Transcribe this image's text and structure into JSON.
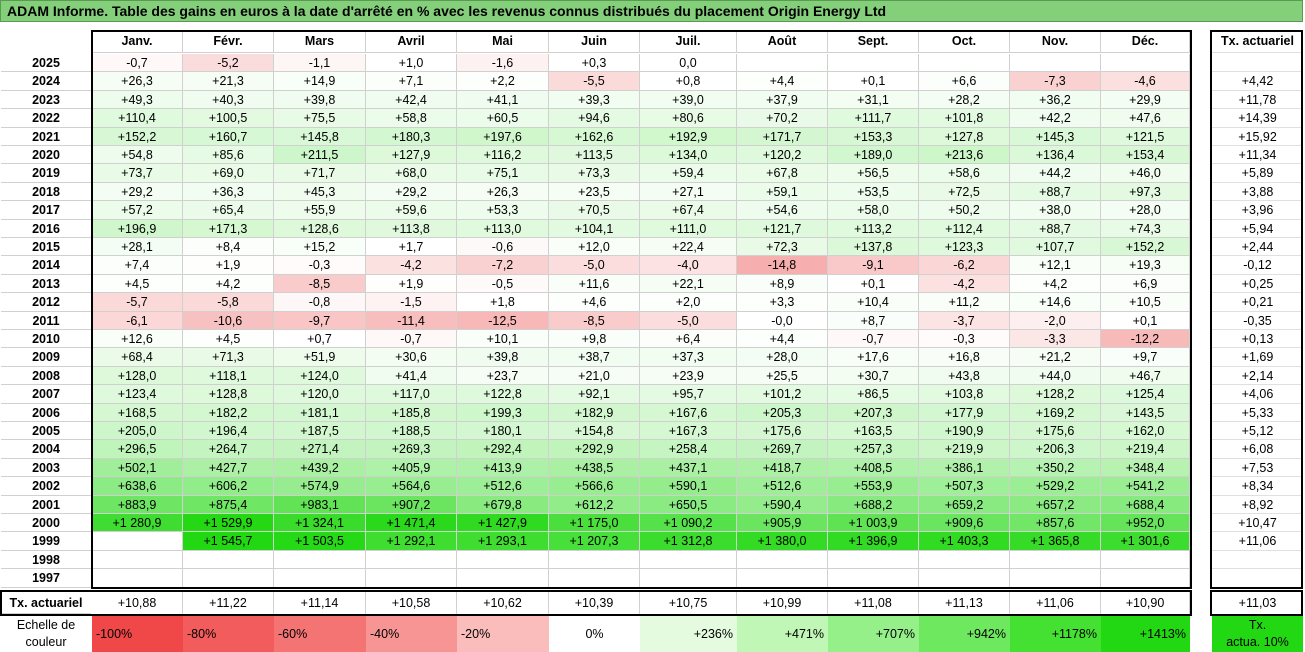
{
  "title": "ADAM Informe. Table des gains en euros à la date d'arrêté en % avec les revenus connus distribués du placement Origin Energy Ltd",
  "months": [
    "Janv.",
    "Févr.",
    "Mars",
    "Avril",
    "Mai",
    "Juin",
    "Juil.",
    "Août",
    "Sept.",
    "Oct.",
    "Nov.",
    "Déc."
  ],
  "actuarial_header": "Tx. actuariel",
  "rows": [
    {
      "year": "2025",
      "values": [
        "-0,7",
        "-5,2",
        "-1,1",
        "+1,0",
        "-1,6",
        "+0,3",
        "0,0",
        "",
        "",
        "",
        "",
        ""
      ],
      "tx": ""
    },
    {
      "year": "2024",
      "values": [
        "+26,3",
        "+21,3",
        "+14,9",
        "+7,1",
        "+2,2",
        "-5,5",
        "+0,8",
        "+4,4",
        "+0,1",
        "+6,6",
        "-7,3",
        "-4,6"
      ],
      "tx": "+4,42"
    },
    {
      "year": "2023",
      "values": [
        "+49,3",
        "+40,3",
        "+39,8",
        "+42,4",
        "+41,1",
        "+39,3",
        "+39,0",
        "+37,9",
        "+31,1",
        "+28,2",
        "+36,2",
        "+29,9"
      ],
      "tx": "+11,78"
    },
    {
      "year": "2022",
      "values": [
        "+110,4",
        "+100,5",
        "+75,5",
        "+58,8",
        "+60,5",
        "+94,6",
        "+80,6",
        "+70,2",
        "+111,7",
        "+101,8",
        "+42,2",
        "+47,6"
      ],
      "tx": "+14,39"
    },
    {
      "year": "2021",
      "values": [
        "+152,2",
        "+160,7",
        "+145,8",
        "+180,3",
        "+197,6",
        "+162,6",
        "+192,9",
        "+171,7",
        "+153,3",
        "+127,8",
        "+145,3",
        "+121,5"
      ],
      "tx": "+15,92"
    },
    {
      "year": "2020",
      "values": [
        "+54,8",
        "+85,6",
        "+211,5",
        "+127,9",
        "+116,2",
        "+113,5",
        "+134,0",
        "+120,2",
        "+189,0",
        "+213,6",
        "+136,4",
        "+153,4"
      ],
      "tx": "+11,34"
    },
    {
      "year": "2019",
      "values": [
        "+73,7",
        "+69,0",
        "+71,7",
        "+68,0",
        "+75,1",
        "+73,3",
        "+59,4",
        "+67,8",
        "+56,5",
        "+58,6",
        "+44,2",
        "+46,0"
      ],
      "tx": "+5,89"
    },
    {
      "year": "2018",
      "values": [
        "+29,2",
        "+36,3",
        "+45,3",
        "+29,2",
        "+26,3",
        "+23,5",
        "+27,1",
        "+59,1",
        "+53,5",
        "+72,5",
        "+88,7",
        "+97,3"
      ],
      "tx": "+3,88"
    },
    {
      "year": "2017",
      "values": [
        "+57,2",
        "+65,4",
        "+55,9",
        "+59,6",
        "+53,3",
        "+70,5",
        "+67,4",
        "+54,6",
        "+58,0",
        "+50,2",
        "+38,0",
        "+28,0"
      ],
      "tx": "+3,96"
    },
    {
      "year": "2016",
      "values": [
        "+196,9",
        "+171,3",
        "+128,6",
        "+113,8",
        "+113,0",
        "+104,1",
        "+111,0",
        "+121,7",
        "+113,2",
        "+112,4",
        "+88,7",
        "+74,3"
      ],
      "tx": "+5,94"
    },
    {
      "year": "2015",
      "values": [
        "+28,1",
        "+8,4",
        "+15,2",
        "+1,7",
        "-0,6",
        "+12,0",
        "+22,4",
        "+72,3",
        "+137,8",
        "+123,3",
        "+107,7",
        "+152,2"
      ],
      "tx": "+2,44"
    },
    {
      "year": "2014",
      "values": [
        "+7,4",
        "+1,9",
        "-0,3",
        "-4,2",
        "-7,2",
        "-5,0",
        "-4,0",
        "-14,8",
        "-9,1",
        "-6,2",
        "+12,1",
        "+19,3"
      ],
      "tx": "-0,12"
    },
    {
      "year": "2013",
      "values": [
        "+4,5",
        "+4,2",
        "-8,5",
        "+1,9",
        "-0,5",
        "+11,6",
        "+22,1",
        "+8,9",
        "+0,1",
        "-4,2",
        "+4,2",
        "+6,9"
      ],
      "tx": "+0,25"
    },
    {
      "year": "2012",
      "values": [
        "-5,7",
        "-5,8",
        "-0,8",
        "-1,5",
        "+1,8",
        "+4,6",
        "+2,0",
        "+3,3",
        "+10,4",
        "+11,2",
        "+14,6",
        "+10,5"
      ],
      "tx": "+0,21"
    },
    {
      "year": "2011",
      "values": [
        "-6,1",
        "-10,6",
        "-9,7",
        "-11,4",
        "-12,5",
        "-8,5",
        "-5,0",
        "-0,0",
        "+8,7",
        "-3,7",
        "-2,0",
        "+0,1"
      ],
      "tx": "-0,35"
    },
    {
      "year": "2010",
      "values": [
        "+12,6",
        "+4,5",
        "+0,7",
        "-0,7",
        "+10,1",
        "+9,8",
        "+6,4",
        "+4,4",
        "-0,7",
        "-0,3",
        "-3,3",
        "-12,2"
      ],
      "tx": "+0,13"
    },
    {
      "year": "2009",
      "values": [
        "+68,4",
        "+71,3",
        "+51,9",
        "+30,6",
        "+39,8",
        "+38,7",
        "+37,3",
        "+28,0",
        "+17,6",
        "+16,8",
        "+21,2",
        "+9,7"
      ],
      "tx": "+1,69"
    },
    {
      "year": "2008",
      "values": [
        "+128,0",
        "+118,1",
        "+124,0",
        "+41,4",
        "+23,7",
        "+21,0",
        "+23,9",
        "+25,5",
        "+30,7",
        "+43,8",
        "+44,0",
        "+46,7"
      ],
      "tx": "+2,14"
    },
    {
      "year": "2007",
      "values": [
        "+123,4",
        "+128,8",
        "+120,0",
        "+117,0",
        "+122,8",
        "+92,1",
        "+95,7",
        "+101,2",
        "+86,5",
        "+103,8",
        "+128,2",
        "+125,4"
      ],
      "tx": "+4,06"
    },
    {
      "year": "2006",
      "values": [
        "+168,5",
        "+182,2",
        "+181,1",
        "+185,8",
        "+199,3",
        "+182,9",
        "+167,6",
        "+205,3",
        "+207,3",
        "+177,9",
        "+169,2",
        "+143,5"
      ],
      "tx": "+5,33"
    },
    {
      "year": "2005",
      "values": [
        "+205,0",
        "+196,4",
        "+187,5",
        "+188,5",
        "+180,1",
        "+154,8",
        "+167,3",
        "+175,6",
        "+163,5",
        "+190,9",
        "+175,6",
        "+162,0"
      ],
      "tx": "+5,12"
    },
    {
      "year": "2004",
      "values": [
        "+296,5",
        "+264,7",
        "+271,4",
        "+269,3",
        "+292,4",
        "+292,9",
        "+258,4",
        "+269,7",
        "+257,3",
        "+219,9",
        "+206,3",
        "+219,4"
      ],
      "tx": "+6,08"
    },
    {
      "year": "2003",
      "values": [
        "+502,1",
        "+427,7",
        "+439,2",
        "+405,9",
        "+413,9",
        "+438,5",
        "+437,1",
        "+418,7",
        "+408,5",
        "+386,1",
        "+350,2",
        "+348,4"
      ],
      "tx": "+7,53"
    },
    {
      "year": "2002",
      "values": [
        "+638,6",
        "+606,2",
        "+574,9",
        "+564,6",
        "+512,6",
        "+566,6",
        "+590,1",
        "+512,6",
        "+553,9",
        "+507,3",
        "+529,2",
        "+541,2"
      ],
      "tx": "+8,34"
    },
    {
      "year": "2001",
      "values": [
        "+883,9",
        "+875,4",
        "+983,1",
        "+907,2",
        "+679,8",
        "+612,2",
        "+650,5",
        "+590,4",
        "+688,2",
        "+659,2",
        "+657,2",
        "+688,4"
      ],
      "tx": "+8,92"
    },
    {
      "year": "2000",
      "values": [
        "+1 280,9",
        "+1 529,9",
        "+1 324,1",
        "+1 471,4",
        "+1 427,9",
        "+1 175,0",
        "+1 090,2",
        "+905,9",
        "+1 003,9",
        "+909,6",
        "+857,6",
        "+952,0"
      ],
      "tx": "+10,47"
    },
    {
      "year": "1999",
      "values": [
        "",
        "+1 545,7",
        "+1 503,5",
        "+1 292,1",
        "+1 293,1",
        "+1 207,3",
        "+1 312,8",
        "+1 380,0",
        "+1 396,9",
        "+1 403,3",
        "+1 365,8",
        "+1 301,6"
      ],
      "tx": "+11,06"
    },
    {
      "year": "1998",
      "values": [
        "",
        "",
        "",
        "",
        "",
        "",
        "",
        "",
        "",
        "",
        "",
        ""
      ],
      "tx": ""
    },
    {
      "year": "1997",
      "values": [
        "",
        "",
        "",
        "",
        "",
        "",
        "",
        "",
        "",
        "",
        "",
        ""
      ],
      "tx": ""
    }
  ],
  "footer": {
    "label": "Tx. actuariel",
    "values": [
      "+10,88",
      "+11,22",
      "+11,14",
      "+10,58",
      "+10,62",
      "+10,39",
      "+10,75",
      "+10,99",
      "+11,08",
      "+11,13",
      "+11,06",
      "+10,90"
    ],
    "tx": "+11,03"
  },
  "legend": {
    "label_line1": "Echelle de",
    "label_line2": "couleur",
    "items": [
      {
        "text": "-100%",
        "color": "#f04848",
        "align": "left"
      },
      {
        "text": "-80%",
        "color": "#f25c5c",
        "align": "left"
      },
      {
        "text": "-60%",
        "color": "#f47474",
        "align": "left"
      },
      {
        "text": "-40%",
        "color": "#f79494",
        "align": "left"
      },
      {
        "text": "-20%",
        "color": "#fbbcbc",
        "align": "left"
      },
      {
        "text": "0%",
        "color": "#ffffff",
        "align": "center"
      },
      {
        "text": "+236%",
        "color": "#e4fbe0",
        "align": "right"
      },
      {
        "text": "+471%",
        "color": "#c0f7b6",
        "align": "right"
      },
      {
        "text": "+707%",
        "color": "#96f08a",
        "align": "right"
      },
      {
        "text": "+942%",
        "color": "#6ee85e",
        "align": "right"
      },
      {
        "text": "+1178%",
        "color": "#44e032",
        "align": "right"
      },
      {
        "text": "+1413%",
        "color": "#22d812",
        "align": "right"
      }
    ],
    "tx_line1": "Tx.",
    "tx_line2": "actua. 10%",
    "tx_color": "#22d812"
  },
  "colors": {
    "title_bg": "#84cf7a",
    "neg_dark": "#f04848",
    "pos_dark": "#22d812"
  }
}
